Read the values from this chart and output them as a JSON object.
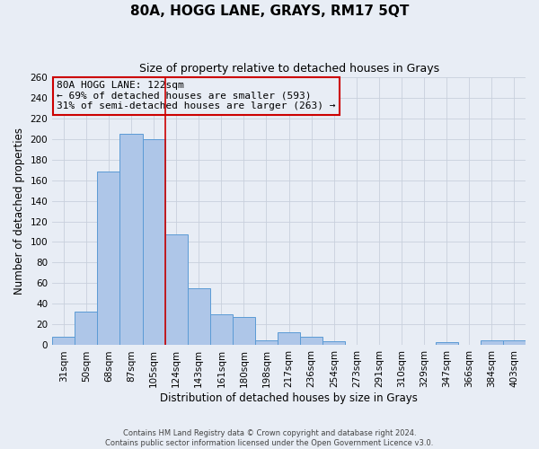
{
  "title": "80A, HOGG LANE, GRAYS, RM17 5QT",
  "subtitle": "Size of property relative to detached houses in Grays",
  "xlabel": "Distribution of detached houses by size in Grays",
  "ylabel": "Number of detached properties",
  "bar_labels": [
    "31sqm",
    "50sqm",
    "68sqm",
    "87sqm",
    "105sqm",
    "124sqm",
    "143sqm",
    "161sqm",
    "180sqm",
    "198sqm",
    "217sqm",
    "236sqm",
    "254sqm",
    "273sqm",
    "291sqm",
    "310sqm",
    "329sqm",
    "347sqm",
    "366sqm",
    "384sqm",
    "403sqm"
  ],
  "bar_values": [
    8,
    33,
    168,
    205,
    200,
    107,
    55,
    30,
    27,
    5,
    13,
    8,
    4,
    0,
    0,
    0,
    0,
    3,
    0,
    5,
    5
  ],
  "bar_color": "#aec6e8",
  "bar_edge_color": "#5b9bd5",
  "bg_color": "#e8edf5",
  "grid_color": "#c8d0dc",
  "red_line_index": 5,
  "red_line_color": "#cc0000",
  "annotation_line1": "80A HOGG LANE: 122sqm",
  "annotation_line2": "← 69% of detached houses are smaller (593)",
  "annotation_line3": "31% of semi-detached houses are larger (263) →",
  "annotation_box_color": "#cc0000",
  "ylim": [
    0,
    260
  ],
  "yticks": [
    0,
    20,
    40,
    60,
    80,
    100,
    120,
    140,
    160,
    180,
    200,
    220,
    240,
    260
  ],
  "footer1": "Contains HM Land Registry data © Crown copyright and database right 2024.",
  "footer2": "Contains public sector information licensed under the Open Government Licence v3.0.",
  "title_fontsize": 11,
  "subtitle_fontsize": 9,
  "axis_label_fontsize": 8.5,
  "tick_fontsize": 7.5,
  "annotation_fontsize": 8
}
